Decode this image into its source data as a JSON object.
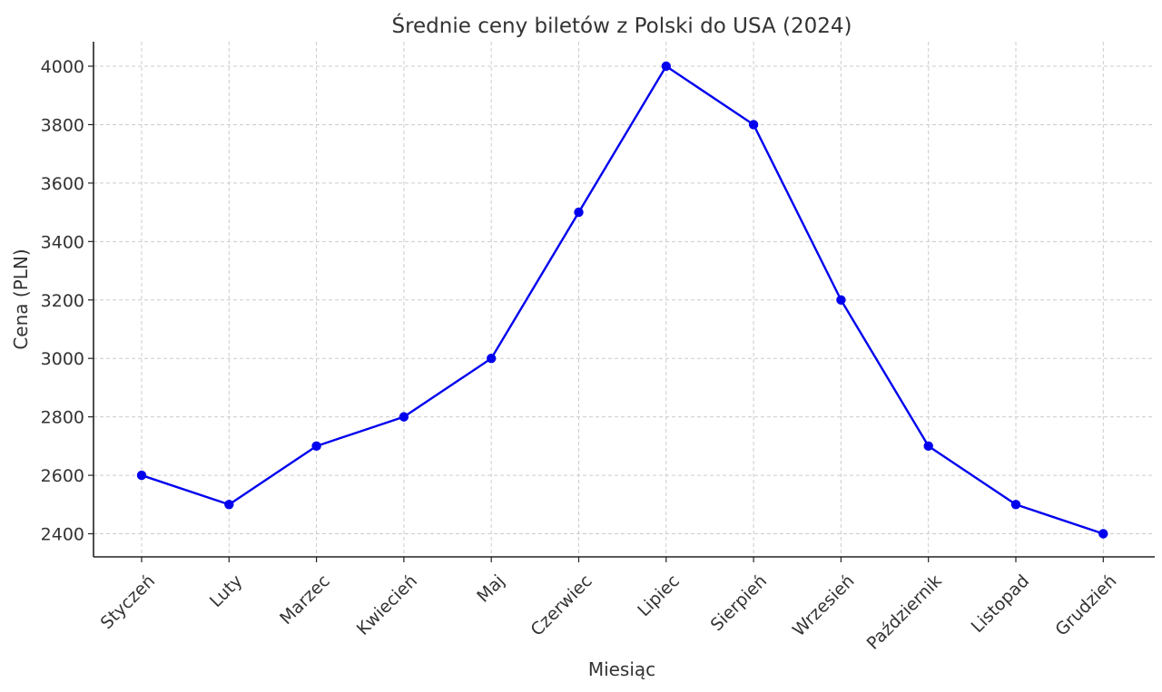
{
  "chart_data": {
    "type": "line",
    "title": "Średnie ceny biletów z Polski do USA (2024)",
    "xlabel": "Miesiąc",
    "ylabel": "Cena (PLN)",
    "categories": [
      "Styczeń",
      "Luty",
      "Marzec",
      "Kwiecień",
      "Maj",
      "Czerwiec",
      "Lipiec",
      "Sierpień",
      "Wrzesień",
      "Październik",
      "Listopad",
      "Grudzień"
    ],
    "series": [
      {
        "values": [
          2600,
          2500,
          2700,
          2800,
          3000,
          3500,
          4000,
          3800,
          3200,
          2700,
          2500,
          2400
        ],
        "color": "#0000ee",
        "marker": "circle"
      }
    ],
    "ylim": [
      2320,
      4080
    ],
    "yticks": [
      2400,
      2600,
      2800,
      3000,
      3200,
      3400,
      3600,
      3800,
      4000
    ],
    "grid": true,
    "grid_style": "dashed",
    "xtick_rotation": -45
  }
}
